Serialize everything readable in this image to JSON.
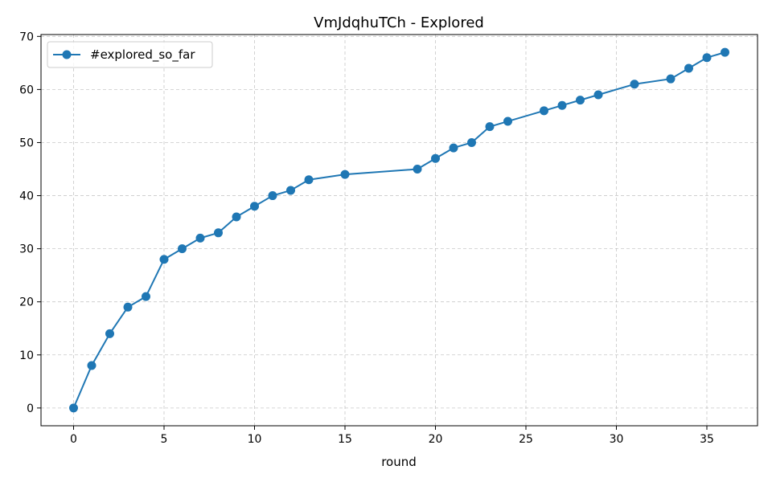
{
  "chart_data": {
    "type": "line",
    "title": "VmJdqhuTCh - Explored",
    "xlabel": "round",
    "ylabel": "",
    "xlim": [
      -1.8,
      37.8
    ],
    "ylim": [
      -3.35,
      70.35
    ],
    "xticks": [
      0,
      5,
      10,
      15,
      20,
      25,
      30,
      35
    ],
    "yticks": [
      0,
      10,
      20,
      30,
      40,
      50,
      60,
      70
    ],
    "grid": true,
    "legend_position": "upper-left",
    "series": [
      {
        "name": "#explored_so_far",
        "color": "#1f77b4",
        "marker": "circle",
        "x": [
          0,
          1,
          2,
          3,
          4,
          5,
          6,
          7,
          8,
          9,
          10,
          11,
          12,
          13,
          15,
          19,
          20,
          21,
          22,
          23,
          24,
          26,
          27,
          28,
          29,
          31,
          33,
          34,
          35,
          36
        ],
        "y": [
          0,
          8,
          14,
          19,
          21,
          28,
          30,
          32,
          33,
          36,
          38,
          40,
          41,
          43,
          44,
          45,
          47,
          49,
          50,
          53,
          54,
          56,
          57,
          58,
          59,
          61,
          62,
          64,
          66,
          67
        ]
      }
    ]
  }
}
